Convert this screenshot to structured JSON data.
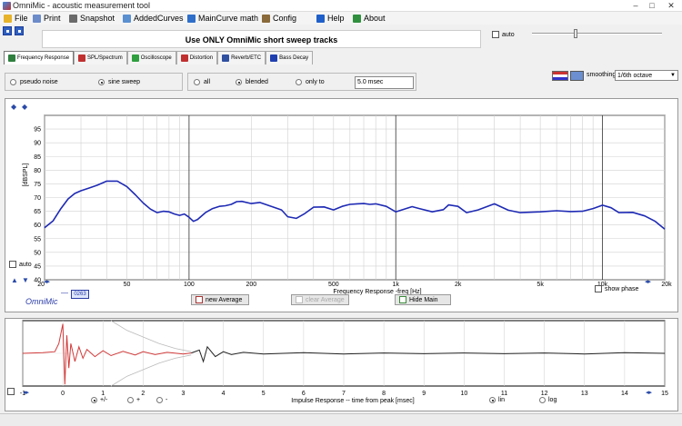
{
  "window": {
    "title": "OmniMic - acoustic measurement tool",
    "min": "–",
    "max": "□",
    "close": "✕"
  },
  "menu": [
    {
      "label": "File",
      "icon": "folder-icon",
      "color": "#e6b32a"
    },
    {
      "label": "Print",
      "icon": "printer-icon",
      "color": "#6c8bc9"
    },
    {
      "label": "Snapshot",
      "icon": "camera-icon",
      "color": "#6b6b6b"
    },
    {
      "label": "AddedCurves",
      "icon": "curves-icon",
      "color": "#5a8fd0"
    },
    {
      "label": "MainCurve math",
      "icon": "math-icon",
      "color": "#2f6fc9"
    },
    {
      "label": "Config",
      "icon": "tools-icon",
      "color": "#8a6a3a"
    },
    {
      "label": "Help",
      "icon": "help-icon",
      "color": "#1f5fc9"
    },
    {
      "label": "About",
      "icon": "about-icon",
      "color": "#2f8f3f"
    }
  ],
  "banner": "Use ONLY OmniMic short sweep tracks",
  "auto_top": "auto",
  "tabs": [
    {
      "label": "Frequency Response",
      "icon": "frequency-response-icon",
      "color": "#2f7f3f",
      "active": true
    },
    {
      "label": "SPL/Spectrum",
      "icon": "spl-icon",
      "color": "#c03030",
      "active": false
    },
    {
      "label": "Oscilloscope",
      "icon": "oscilloscope-icon",
      "color": "#2f9f3f",
      "active": false
    },
    {
      "label": "Distortion",
      "icon": "distortion-icon",
      "color": "#c03030",
      "active": false
    },
    {
      "label": "Reverb/ETC",
      "icon": "reverb-icon",
      "color": "#3050a0",
      "active": false
    },
    {
      "label": "Bass Decay",
      "icon": "bass-decay-icon",
      "color": "#2040b0",
      "active": false
    }
  ],
  "signal": {
    "pseudo_noise": "pseudo noise",
    "sine_sweep": "sine sweep"
  },
  "gating": {
    "all": "all",
    "blended": "blended",
    "only_to": "only to",
    "time": "5.0 msec"
  },
  "smoothing": {
    "label": "smoothing",
    "value": "1/6th octave"
  },
  "fr_chart": {
    "ylabel": "[dBSPL]",
    "xlabel": "Frequency Response -freq [Hz]",
    "y_ticks": [
      "95",
      "90",
      "85",
      "80",
      "75",
      "70",
      "65",
      "60",
      "55",
      "50",
      "45",
      "40"
    ],
    "x_ticks": [
      "20",
      "50",
      "100",
      "200",
      "500",
      "1k",
      "2k",
      "5k",
      "10k",
      "20k"
    ],
    "auto": "auto",
    "show_phase": "show phase",
    "logo": "OmniMic",
    "device_id": "0263",
    "buttons": {
      "new_average": "new Average",
      "clear_average": "clear Average",
      "hide_main": "Hide Main"
    }
  },
  "ir_chart": {
    "xlabel": "Impulse Response  -- time from peak [msec]",
    "x_ticks": [
      "-1",
      "0",
      "1",
      "2",
      "3",
      "4",
      "5",
      "6",
      "7",
      "8",
      "9",
      "10",
      "11",
      "12",
      "13",
      "14",
      "15"
    ],
    "polarity": [
      "+/-",
      "+",
      "-"
    ],
    "scale": [
      "lin",
      "log"
    ]
  },
  "chart_data": [
    {
      "type": "line",
      "ylabel": "[dBSPL]",
      "xlabel": "Frequency Response -freq [Hz]",
      "x_scale": "log",
      "xlim": [
        20,
        20000
      ],
      "ylim": [
        40,
        100
      ],
      "grid": true,
      "series": [
        {
          "color": "#1e2ab4",
          "x": [
            20,
            22,
            24,
            26,
            28,
            30,
            33,
            36,
            40,
            45,
            50,
            55,
            60,
            65,
            70,
            75,
            80,
            85,
            90,
            95,
            100,
            105,
            110,
            120,
            130,
            140,
            150,
            160,
            170,
            180,
            200,
            220,
            250,
            280,
            300,
            330,
            360,
            400,
            450,
            500,
            550,
            600,
            650,
            700,
            750,
            800,
            900,
            1000,
            1100,
            1200,
            1300,
            1500,
            1700,
            1800,
            2000,
            2200,
            2500,
            3000,
            3500,
            4000,
            5000,
            6000,
            7000,
            8000,
            9000,
            10000,
            11000,
            12000,
            14000,
            16000,
            18000,
            20000
          ],
          "y": [
            59,
            61.5,
            66,
            69.5,
            71.5,
            72.5,
            73.5,
            74.5,
            76,
            76,
            74,
            71,
            68,
            65.8,
            64.5,
            65,
            64.8,
            64,
            63.5,
            64,
            62.8,
            61.3,
            62,
            64.5,
            66,
            66.8,
            67,
            67.5,
            68.5,
            68.6,
            67.8,
            68.2,
            66.8,
            65.5,
            63,
            62.4,
            64,
            66.5,
            66.6,
            65.5,
            66.8,
            67.5,
            67.7,
            67.8,
            67.5,
            67.7,
            66.8,
            64.8,
            65.8,
            66.7,
            66,
            64.8,
            65.6,
            67.3,
            66.8,
            64.5,
            65.5,
            67.7,
            65.4,
            64.5,
            64.8,
            65.2,
            64.9,
            65,
            66,
            67.2,
            66.3,
            64.5,
            64.6,
            63.3,
            61.3,
            58.5
          ]
        }
      ]
    },
    {
      "type": "line",
      "xlabel": "Impulse Response  -- time from peak [msec]",
      "xlim": [
        -1,
        15
      ],
      "ylim": [
        -1,
        1
      ],
      "grid": true,
      "series": [
        {
          "color": "#d23a3a",
          "x": [
            -1,
            -0.5,
            -0.2,
            -0.1,
            0,
            0.05,
            0.1,
            0.15,
            0.2,
            0.3,
            0.4,
            0.5,
            0.6,
            0.8,
            1.0,
            1.2,
            1.5,
            1.8,
            2.0,
            2.3,
            2.6,
            3.0,
            3.2
          ],
          "y": [
            0,
            0.02,
            0.05,
            0.3,
            0.9,
            -0.95,
            0.55,
            -0.45,
            0.3,
            -0.25,
            0.2,
            -0.15,
            0.12,
            -0.1,
            0.08,
            -0.07,
            0.06,
            -0.05,
            0.05,
            -0.04,
            0.03,
            -0.02,
            0.01
          ]
        },
        {
          "color": "#222222",
          "x": [
            3.2,
            3.4,
            3.5,
            3.6,
            3.8,
            4.0,
            4.2,
            4.5,
            5,
            6,
            7,
            8,
            9,
            10,
            11,
            12,
            13,
            14,
            15
          ],
          "y": [
            0.01,
            0.1,
            -0.25,
            0.2,
            -0.1,
            0.05,
            -0.04,
            0.03,
            -0.02,
            0.02,
            -0.02,
            0.01,
            -0.01,
            0.01,
            -0.01,
            0.01,
            -0.02,
            0.02,
            0
          ]
        },
        {
          "color": "#bbbbbb",
          "x": [
            1.2,
            1.6,
            2.0,
            2.4,
            2.8,
            3.2
          ],
          "y": [
            1,
            0.7,
            0.5,
            0.3,
            0.15,
            0.05
          ]
        },
        {
          "color": "#bbbbbb",
          "x": [
            1.2,
            1.6,
            2.0,
            2.4,
            2.8,
            3.2
          ],
          "y": [
            -1,
            -0.7,
            -0.5,
            -0.3,
            -0.15,
            -0.05
          ]
        }
      ]
    }
  ]
}
